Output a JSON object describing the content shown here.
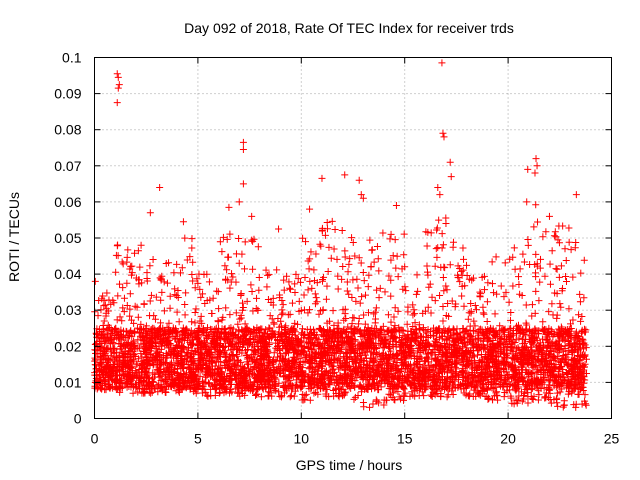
{
  "chart_data": {
    "type": "scatter",
    "title": "Day 092 of 2018, Rate Of TEC Index for receiver trds",
    "xlabel": "GPS time / hours",
    "ylabel": "ROTI / TECUs",
    "xlim": [
      0,
      25
    ],
    "ylim": [
      0,
      0.1
    ],
    "grid": true,
    "marker": "plus",
    "marker_color": "#ff0000",
    "xticks": [
      "0",
      "5",
      "10",
      "15",
      "20",
      "25"
    ],
    "yticks": [
      "0",
      "0.01",
      "0.02",
      "0.03",
      "0.04",
      "0.05",
      "0.06",
      "0.07",
      "0.08",
      "0.09",
      "0.1"
    ],
    "series": [
      {
        "points": [
          [
            1.1,
            0.0955
          ],
          [
            1.15,
            0.0945
          ],
          [
            1.2,
            0.0925
          ],
          [
            1.15,
            0.0915
          ],
          [
            1.1,
            0.0875
          ],
          [
            16.8,
            0.0985
          ],
          [
            16.85,
            0.079
          ],
          [
            16.9,
            0.078
          ],
          [
            7.2,
            0.0765
          ],
          [
            7.2,
            0.0745
          ],
          [
            7.2,
            0.065
          ],
          [
            17.2,
            0.071
          ],
          [
            17.25,
            0.067
          ],
          [
            21.35,
            0.072
          ],
          [
            21.4,
            0.07
          ],
          [
            21.3,
            0.068
          ],
          [
            20.95,
            0.069
          ],
          [
            3.15,
            0.064
          ],
          [
            12.8,
            0.066
          ],
          [
            11.0,
            0.0665
          ],
          [
            12.1,
            0.0675
          ],
          [
            16.6,
            0.064
          ],
          [
            16.7,
            0.062
          ],
          [
            14.6,
            0.059
          ],
          [
            13.0,
            0.061
          ],
          [
            6.5,
            0.0585
          ],
          [
            7.0,
            0.06
          ],
          [
            7.6,
            0.056
          ],
          [
            10.4,
            0.058
          ],
          [
            2.7,
            0.057
          ],
          [
            4.3,
            0.0545
          ],
          [
            22.0,
            0.056
          ],
          [
            23.3,
            0.062
          ],
          [
            20.9,
            0.06
          ],
          [
            8.9,
            0.0525
          ],
          [
            12.9,
            0.062
          ]
        ],
        "dense_bands": [
          {
            "x": [
              0.0,
              0.4
            ],
            "y": [
              0.008,
              0.04
            ]
          },
          {
            "x": [
              0.4,
              1.0
            ],
            "y": [
              0.008,
              0.035
            ]
          },
          {
            "x": [
              1.0,
              2.0
            ],
            "y": [
              0.007,
              0.05
            ]
          },
          {
            "x": [
              2.0,
              3.0
            ],
            "y": [
              0.007,
              0.048
            ]
          },
          {
            "x": [
              3.0,
              4.0
            ],
            "y": [
              0.007,
              0.045
            ]
          },
          {
            "x": [
              4.0,
              5.0
            ],
            "y": [
              0.007,
              0.05
            ]
          },
          {
            "x": [
              5.0,
              6.0
            ],
            "y": [
              0.006,
              0.042
            ]
          },
          {
            "x": [
              6.0,
              7.0
            ],
            "y": [
              0.007,
              0.052
            ]
          },
          {
            "x": [
              7.0,
              8.0
            ],
            "y": [
              0.006,
              0.05
            ]
          },
          {
            "x": [
              8.0,
              9.0
            ],
            "y": [
              0.006,
              0.042
            ]
          },
          {
            "x": [
              9.0,
              10.0
            ],
            "y": [
              0.006,
              0.04
            ]
          },
          {
            "x": [
              10.0,
              11.0
            ],
            "y": [
              0.005,
              0.05
            ]
          },
          {
            "x": [
              11.0,
              12.0
            ],
            "y": [
              0.006,
              0.055
            ]
          },
          {
            "x": [
              12.0,
              13.0
            ],
            "y": [
              0.005,
              0.055
            ]
          },
          {
            "x": [
              13.0,
              14.0
            ],
            "y": [
              0.003,
              0.052
            ]
          },
          {
            "x": [
              14.0,
              15.0
            ],
            "y": [
              0.005,
              0.055
            ]
          },
          {
            "x": [
              15.0,
              16.0
            ],
            "y": [
              0.006,
              0.04
            ]
          },
          {
            "x": [
              16.0,
              17.0
            ],
            "y": [
              0.006,
              0.058
            ]
          },
          {
            "x": [
              17.0,
              18.0
            ],
            "y": [
              0.006,
              0.05
            ]
          },
          {
            "x": [
              18.0,
              19.0
            ],
            "y": [
              0.006,
              0.04
            ]
          },
          {
            "x": [
              19.0,
              20.0
            ],
            "y": [
              0.005,
              0.045
            ]
          },
          {
            "x": [
              20.0,
              21.0
            ],
            "y": [
              0.004,
              0.05
            ]
          },
          {
            "x": [
              21.0,
              22.0
            ],
            "y": [
              0.005,
              0.06
            ]
          },
          {
            "x": [
              22.0,
              23.0
            ],
            "y": [
              0.003,
              0.055
            ]
          },
          {
            "x": [
              23.0,
              23.8
            ],
            "y": [
              0.003,
              0.05
            ]
          }
        ],
        "core_range": [
          0.008,
          0.025
        ]
      }
    ]
  }
}
